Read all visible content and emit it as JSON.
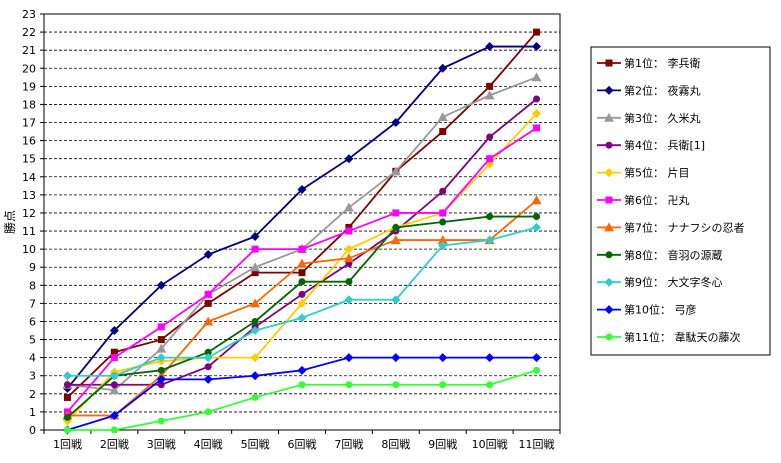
{
  "chart_data": {
    "type": "line",
    "ylabel": "勝点",
    "ylim": [
      0,
      23
    ],
    "yticks": [
      0,
      1,
      2,
      3,
      4,
      5,
      6,
      7,
      8,
      9,
      10,
      11,
      12,
      13,
      14,
      15,
      16,
      17,
      18,
      19,
      20,
      21,
      22,
      23
    ],
    "grid": true,
    "legend_position": "right",
    "categories": [
      "1回戦",
      "2回戦",
      "3回戦",
      "4回戦",
      "5回戦",
      "6回戦",
      "7回戦",
      "8回戦",
      "9回戦",
      "10回戦",
      "11回戦"
    ],
    "series": [
      {
        "name": "第1位： 李兵衛",
        "color": "#800000",
        "marker": "square",
        "values": [
          1.8,
          4.3,
          5.0,
          7.0,
          8.7,
          8.7,
          11.2,
          14.3,
          16.5,
          19.0,
          22.0
        ]
      },
      {
        "name": "第2位： 夜霧丸",
        "color": "#000080",
        "marker": "diamond",
        "values": [
          2.3,
          5.5,
          8.0,
          9.7,
          10.7,
          13.3,
          15.0,
          17.0,
          20.0,
          21.2,
          21.2
        ]
      },
      {
        "name": "第3位： 久米丸",
        "color": "#999999",
        "marker": "triangle",
        "values": [
          2.5,
          2.2,
          4.5,
          7.5,
          9.0,
          10.0,
          12.3,
          14.3,
          17.3,
          18.5,
          19.5
        ]
      },
      {
        "name": "第4位： 兵衛[1]",
        "color": "#800080",
        "marker": "circle",
        "values": [
          2.5,
          2.5,
          2.5,
          3.5,
          5.7,
          7.5,
          9.2,
          11.0,
          13.2,
          16.2,
          18.3
        ]
      },
      {
        "name": "第5位： 片目",
        "color": "#FFCC00",
        "marker": "diamond",
        "values": [
          0.5,
          3.2,
          3.8,
          4.0,
          4.0,
          7.0,
          10.0,
          11.2,
          12.0,
          14.7,
          17.5
        ]
      },
      {
        "name": "第6位： 卍丸",
        "color": "#FF00FF",
        "marker": "square",
        "values": [
          1.0,
          4.0,
          5.7,
          7.5,
          10.0,
          10.0,
          11.0,
          12.0,
          12.0,
          15.0,
          16.7
        ]
      },
      {
        "name": "第7位： ナナフシの忍者",
        "color": "#FF6600",
        "marker": "triangle",
        "values": [
          0.8,
          0.8,
          3.0,
          6.0,
          7.0,
          9.2,
          9.5,
          10.5,
          10.5,
          10.5,
          12.7
        ]
      },
      {
        "name": "第8位： 音羽の源蔵",
        "color": "#006600",
        "marker": "circle",
        "values": [
          0.7,
          3.0,
          3.3,
          4.3,
          6.0,
          8.2,
          8.2,
          11.2,
          11.5,
          11.8,
          11.8
        ]
      },
      {
        "name": "第9位： 大文字冬心",
        "color": "#33CCCC",
        "marker": "diamond",
        "values": [
          3.0,
          3.0,
          4.0,
          4.0,
          5.5,
          6.2,
          7.2,
          7.2,
          10.2,
          10.5,
          11.2
        ]
      },
      {
        "name": "第10位： 弓彦",
        "color": "#0000FF",
        "marker": "diamond",
        "values": [
          0.0,
          0.8,
          2.8,
          2.8,
          3.0,
          3.3,
          4.0,
          4.0,
          4.0,
          4.0,
          4.0
        ]
      },
      {
        "name": "第11位： 韋駄天の藤次",
        "color": "#33FF33",
        "marker": "circle",
        "values": [
          0.0,
          0.0,
          0.5,
          1.0,
          1.8,
          2.5,
          2.5,
          2.5,
          2.5,
          2.5,
          3.3
        ]
      }
    ]
  }
}
